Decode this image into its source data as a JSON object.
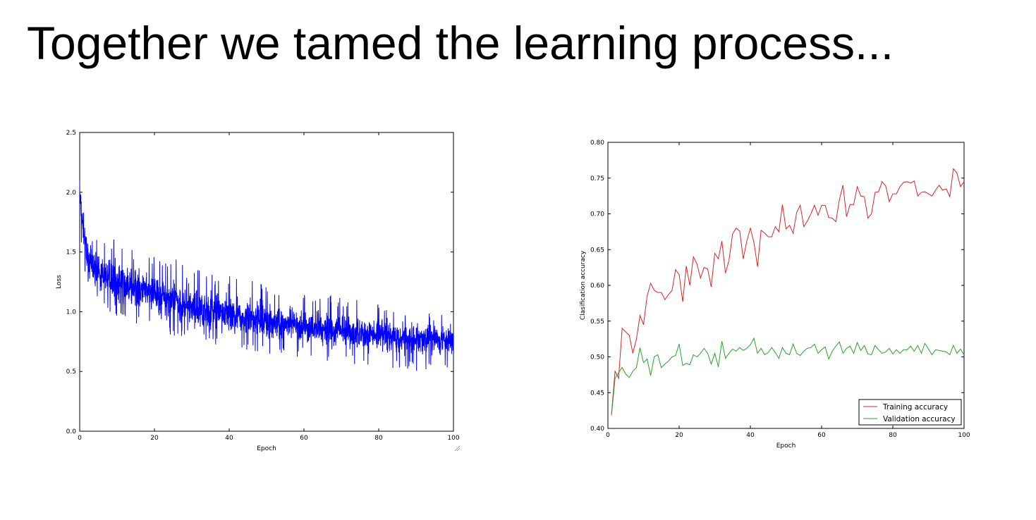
{
  "slide": {
    "title": "Together we tamed the learning process..."
  },
  "chart_data": [
    {
      "type": "line",
      "title": "",
      "xlabel": "Epoch",
      "ylabel": "Loss",
      "xlim": [
        0,
        100
      ],
      "ylim": [
        0.0,
        2.5
      ],
      "xticks": [
        "0",
        "20",
        "40",
        "60",
        "80",
        "100"
      ],
      "yticks": [
        "0.0",
        "0.5",
        "1.0",
        "1.5",
        "2.0",
        "2.5"
      ],
      "grid": false,
      "legend": "none",
      "series": [
        {
          "color": "#0000ff",
          "x": [
            0,
            2,
            4,
            6,
            8,
            10,
            12,
            14,
            16,
            18,
            20,
            22,
            24,
            26,
            28,
            30,
            32,
            34,
            36,
            38,
            40,
            42,
            44,
            46,
            48,
            50,
            52,
            54,
            56,
            58,
            60,
            62,
            64,
            66,
            68,
            70,
            72,
            74,
            76,
            78,
            80,
            82,
            84,
            86,
            88,
            90,
            92,
            94,
            96,
            98,
            100
          ],
          "mean": [
            1.95,
            1.45,
            1.36,
            1.31,
            1.28,
            1.25,
            1.22,
            1.2,
            1.18,
            1.16,
            1.14,
            1.12,
            1.1,
            1.08,
            1.06,
            1.04,
            1.03,
            1.01,
            1.0,
            0.99,
            0.98,
            0.96,
            0.95,
            0.94,
            0.93,
            0.92,
            0.91,
            0.9,
            0.89,
            0.88,
            0.87,
            0.86,
            0.86,
            0.85,
            0.84,
            0.84,
            0.83,
            0.82,
            0.82,
            0.81,
            0.81,
            0.8,
            0.79,
            0.79,
            0.78,
            0.78,
            0.77,
            0.77,
            0.76,
            0.76,
            0.75
          ],
          "upper": [
            2.1,
            1.75,
            1.62,
            1.6,
            1.56,
            1.73,
            1.5,
            1.52,
            1.5,
            1.46,
            1.5,
            1.45,
            1.41,
            1.45,
            1.38,
            1.37,
            1.36,
            1.35,
            1.32,
            1.31,
            1.3,
            1.3,
            1.28,
            1.27,
            1.25,
            1.25,
            1.24,
            1.22,
            1.22,
            1.19,
            1.2,
            1.17,
            1.16,
            1.15,
            1.13,
            1.12,
            1.12,
            1.1,
            1.11,
            1.08,
            1.07,
            1.05,
            1.06,
            1.04,
            1.02,
            1.0,
            1.02,
            0.98,
            0.99,
            0.97,
            0.9
          ],
          "lower": [
            1.6,
            1.2,
            1.08,
            1.02,
            0.98,
            0.95,
            0.92,
            0.9,
            0.87,
            0.85,
            0.83,
            0.82,
            0.8,
            0.78,
            0.77,
            0.75,
            0.74,
            0.73,
            0.72,
            0.7,
            0.7,
            0.69,
            0.68,
            0.67,
            0.66,
            0.65,
            0.64,
            0.63,
            0.62,
            0.62,
            0.6,
            0.6,
            0.59,
            0.58,
            0.58,
            0.57,
            0.57,
            0.56,
            0.56,
            0.55,
            0.55,
            0.54,
            0.5,
            0.53,
            0.52,
            0.5,
            0.51,
            0.5,
            0.49,
            0.5,
            0.55
          ]
        }
      ]
    },
    {
      "type": "line",
      "title": "",
      "xlabel": "Epoch",
      "ylabel": "Clasification accuracy",
      "xlim": [
        0,
        100
      ],
      "ylim": [
        0.4,
        0.8
      ],
      "xticks": [
        "0",
        "20",
        "40",
        "60",
        "80",
        "100"
      ],
      "yticks": [
        "0.40",
        "0.45",
        "0.50",
        "0.55",
        "0.60",
        "0.65",
        "0.70",
        "0.75",
        "0.80"
      ],
      "grid": false,
      "legend": "bottom-right",
      "x": [
        1,
        2,
        3,
        4,
        5,
        6,
        7,
        8,
        9,
        10,
        11,
        12,
        13,
        14,
        15,
        16,
        17,
        18,
        19,
        20,
        21,
        22,
        23,
        24,
        25,
        26,
        27,
        28,
        29,
        30,
        31,
        32,
        33,
        34,
        35,
        36,
        37,
        38,
        39,
        40,
        41,
        42,
        43,
        44,
        45,
        46,
        47,
        48,
        49,
        50,
        51,
        52,
        53,
        54,
        55,
        56,
        57,
        58,
        59,
        60,
        61,
        62,
        63,
        64,
        65,
        66,
        67,
        68,
        69,
        70,
        71,
        72,
        73,
        74,
        75,
        76,
        77,
        78,
        79,
        80,
        81,
        82,
        83,
        84,
        85,
        86,
        87,
        88,
        89,
        90,
        91,
        92,
        93,
        94,
        95,
        96,
        97,
        98,
        99,
        100
      ],
      "series": [
        {
          "name": "Training accuracy",
          "color": "#d62728",
          "values": [
            0.42,
            0.48,
            0.47,
            0.54,
            0.535,
            0.53,
            0.505,
            0.525,
            0.558,
            0.545,
            0.585,
            0.603,
            0.593,
            0.59,
            0.59,
            0.58,
            0.587,
            0.593,
            0.622,
            0.615,
            0.577,
            0.627,
            0.6,
            0.64,
            0.63,
            0.61,
            0.625,
            0.623,
            0.598,
            0.645,
            0.637,
            0.662,
            0.617,
            0.635,
            0.672,
            0.68,
            0.676,
            0.637,
            0.662,
            0.68,
            0.66,
            0.626,
            0.677,
            0.673,
            0.668,
            0.668,
            0.682,
            0.675,
            0.713,
            0.679,
            0.684,
            0.673,
            0.702,
            0.712,
            0.682,
            0.69,
            0.7,
            0.712,
            0.698,
            0.712,
            0.712,
            0.695,
            0.694,
            0.689,
            0.72,
            0.74,
            0.696,
            0.713,
            0.713,
            0.738,
            0.725,
            0.724,
            0.694,
            0.7,
            0.73,
            0.731,
            0.745,
            0.739,
            0.717,
            0.728,
            0.728,
            0.738,
            0.744,
            0.745,
            0.743,
            0.746,
            0.725,
            0.73,
            0.731,
            0.728,
            0.725,
            0.733,
            0.74,
            0.733,
            0.735,
            0.724,
            0.763,
            0.757,
            0.738,
            0.745
          ]
        },
        {
          "name": "Validation accuracy",
          "color": "#2ca02c",
          "values": [
            0.418,
            0.47,
            0.478,
            0.485,
            0.476,
            0.471,
            0.48,
            0.485,
            0.513,
            0.492,
            0.497,
            0.474,
            0.5,
            0.503,
            0.485,
            0.49,
            0.494,
            0.5,
            0.502,
            0.518,
            0.488,
            0.491,
            0.489,
            0.503,
            0.5,
            0.505,
            0.512,
            0.505,
            0.49,
            0.505,
            0.486,
            0.522,
            0.498,
            0.505,
            0.511,
            0.508,
            0.513,
            0.509,
            0.512,
            0.517,
            0.526,
            0.505,
            0.512,
            0.503,
            0.506,
            0.513,
            0.506,
            0.498,
            0.513,
            0.505,
            0.503,
            0.518,
            0.505,
            0.502,
            0.508,
            0.512,
            0.513,
            0.518,
            0.505,
            0.51,
            0.514,
            0.497,
            0.508,
            0.515,
            0.521,
            0.505,
            0.512,
            0.515,
            0.505,
            0.52,
            0.509,
            0.516,
            0.504,
            0.503,
            0.516,
            0.51,
            0.505,
            0.507,
            0.512,
            0.504,
            0.51,
            0.505,
            0.51,
            0.51,
            0.515,
            0.508,
            0.516,
            0.505,
            0.519,
            0.511,
            0.503,
            0.51,
            0.509,
            0.508,
            0.507,
            0.503,
            0.516,
            0.505,
            0.511,
            0.503
          ]
        }
      ]
    }
  ]
}
